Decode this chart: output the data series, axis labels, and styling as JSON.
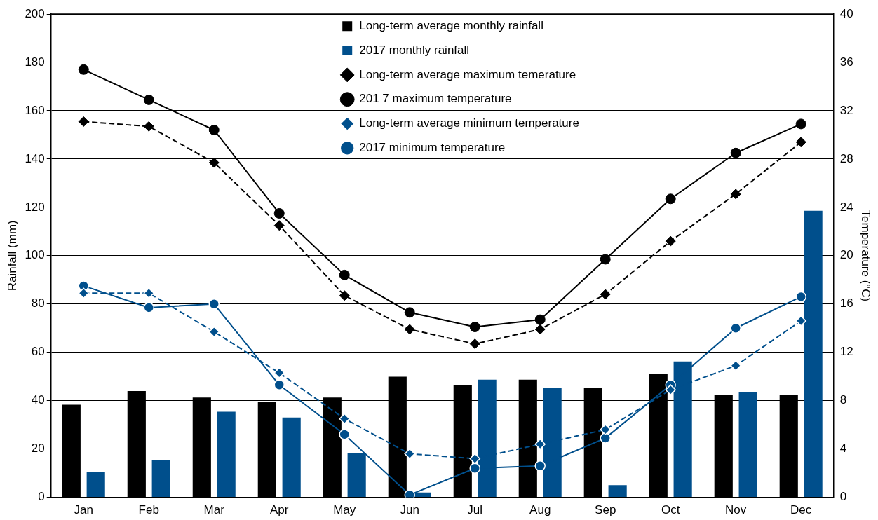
{
  "chart_data": {
    "type": "bar",
    "xlabel": null,
    "ylabel": "Rainfall (mm)",
    "y2label": "Temperature (°C)",
    "categories": [
      "Jan",
      "Feb",
      "Mar",
      "Apr",
      "May",
      "Jun",
      "Jul",
      "Aug",
      "Sep",
      "Oct",
      "Nov",
      "Dec"
    ],
    "ylim": [
      0,
      200
    ],
    "yticks": [
      0,
      20,
      40,
      60,
      80,
      100,
      120,
      140,
      160,
      180,
      200
    ],
    "y2lim": [
      0,
      40
    ],
    "y2ticks": [
      0,
      4,
      8,
      12,
      16,
      20,
      24,
      28,
      32,
      36,
      40
    ],
    "grid": "y",
    "legend": "top",
    "series": [
      {
        "name": "Long-term average monthly rainfall",
        "color": "#000000",
        "values": [
          38.3,
          44,
          41.3,
          39.5,
          41.3,
          49.9,
          46.4,
          48.7,
          45.2,
          51.1,
          42.5,
          42.5
        ]
      },
      {
        "name": "2017 monthly rainfall",
        "color": "#004f8c",
        "values": [
          10.4,
          15.5,
          35.4,
          33,
          18.4,
          2,
          48.7,
          45.2,
          5,
          56.2,
          43.4,
          118.6
        ]
      },
      {
        "name": "Long-term average maximum temerature",
        "type": "line",
        "axis": "y2",
        "color": "#000000",
        "marker": "diamond",
        "line_style": "dashed",
        "values": [
          31.1,
          30.7,
          27.7,
          22.5,
          16.7,
          13.9,
          12.7,
          13.9,
          16.8,
          21.2,
          25.1,
          29.4
        ]
      },
      {
        "name": "201 7 maximum temperature",
        "type": "line",
        "axis": "y2",
        "color": "#000000",
        "marker": "circle",
        "line_style": "solid",
        "values": [
          35.4,
          32.9,
          30.4,
          23.5,
          18.4,
          15.3,
          14.1,
          14.7,
          19.7,
          24.7,
          28.5,
          30.9
        ]
      },
      {
        "name": "Long-term average minimum temperature",
        "type": "line",
        "axis": "y2",
        "color": "#004f8c",
        "marker": "diamond",
        "line_style": "dashed",
        "values": [
          16.9,
          16.9,
          13.7,
          10.3,
          6.5,
          3.6,
          3.2,
          4.4,
          5.6,
          8.9,
          10.9,
          14.6
        ]
      },
      {
        "name": "2017 minimum temperature",
        "type": "line",
        "axis": "y2",
        "color": "#004f8c",
        "marker": "circle",
        "line_style": "solid",
        "values": [
          17.5,
          15.7,
          16.0,
          9.3,
          5.2,
          0.2,
          2.4,
          2.6,
          4.9,
          9.3,
          14.0,
          16.6
        ]
      }
    ]
  }
}
